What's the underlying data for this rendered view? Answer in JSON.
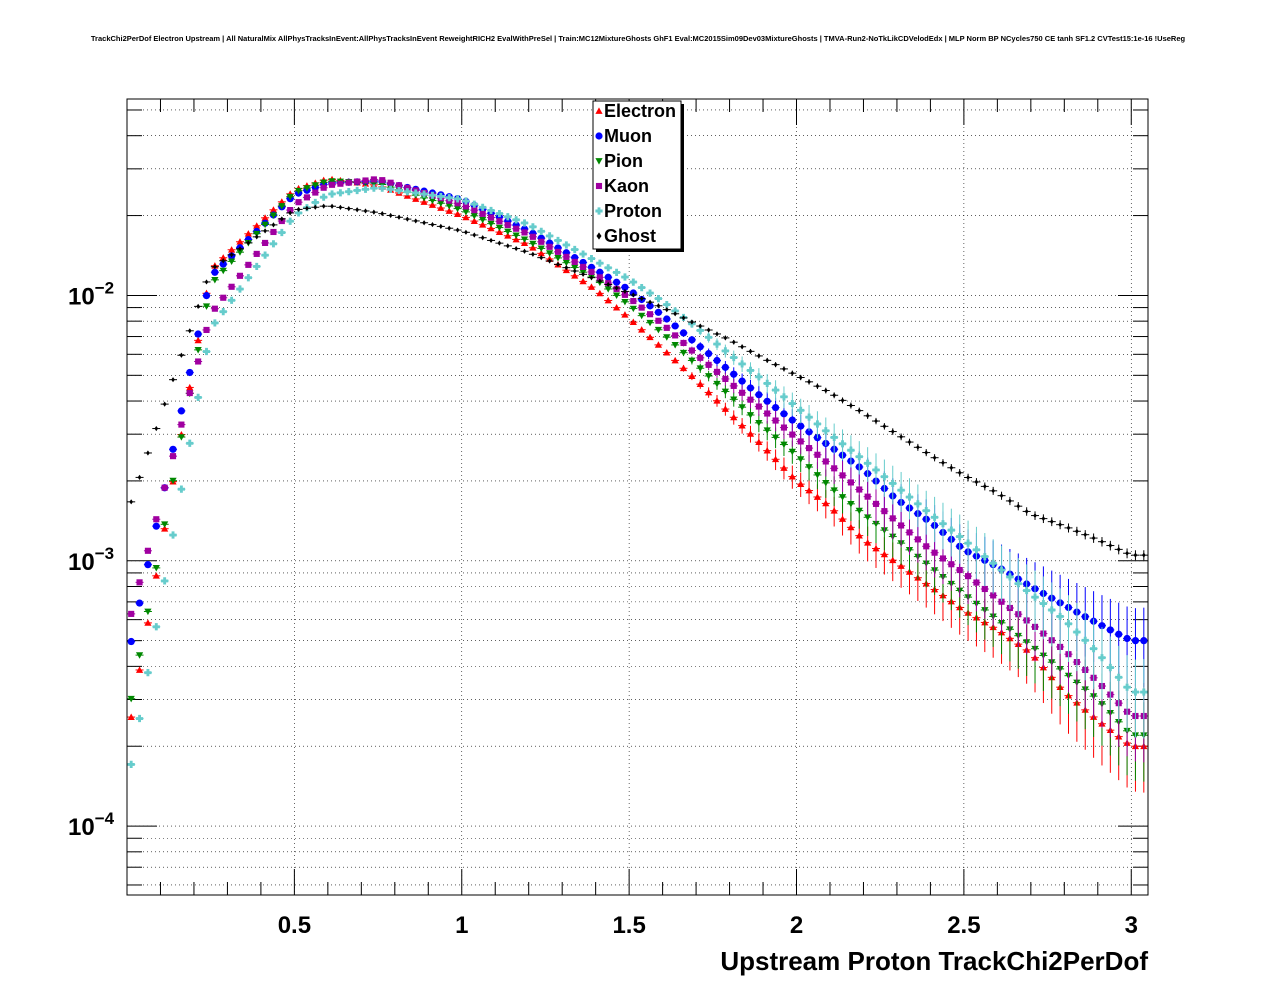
{
  "chart_data": {
    "type": "scatter",
    "title": "TrackChi2PerDof Electron Upstream | All NaturalMix AllPhysTracksInEvent:AllPhysTracksInEvent ReweightRICH2 EvalWithPreSel | Train:MC12MixtureGhosts GhF1 Eval:MC2015Sim09Dev03MixtureGhosts | TMVA-Run2-NoTkLikCDVelodEdx | MLP Norm BP NCycles750 CE tanh SF1.2 CVTest15:1e-16 !UseReg",
    "xlabel": "Upstream Proton TrackChi2PerDof",
    "ylabel": "",
    "xlim": [
      0.0,
      3.05
    ],
    "ylim": [
      5.5e-05,
      0.055
    ],
    "yscale": "log",
    "grid": true,
    "legend_position": "top-center",
    "x_ticks": [
      {
        "value": 0.5,
        "label": "0.5"
      },
      {
        "value": 1,
        "label": "1"
      },
      {
        "value": 1.5,
        "label": "1.5"
      },
      {
        "value": 2,
        "label": "2"
      },
      {
        "value": 2.5,
        "label": "2.5"
      },
      {
        "value": 3,
        "label": "3"
      }
    ],
    "y_ticks": [
      {
        "value": 0.01,
        "base": "10",
        "exp": "−2"
      },
      {
        "value": 0.001,
        "base": "10",
        "exp": "−3"
      },
      {
        "value": 0.0001,
        "base": "10",
        "exp": "−4"
      }
    ],
    "series": [
      {
        "name": "Electron",
        "color": "#ff0000",
        "marker": "triangle-up",
        "points": [
          [
            0.0,
            0.00021
          ],
          [
            0.25,
            0.0125
          ],
          [
            0.5,
            0.025
          ],
          [
            0.6,
            0.0275
          ],
          [
            0.75,
            0.026
          ],
          [
            1.0,
            0.02
          ],
          [
            1.2,
            0.0155
          ],
          [
            1.4,
            0.0105
          ],
          [
            1.5,
            0.0082
          ],
          [
            1.6,
            0.0063
          ],
          [
            1.7,
            0.0048
          ],
          [
            1.8,
            0.0036
          ],
          [
            1.9,
            0.0027
          ],
          [
            2.0,
            0.002
          ],
          [
            2.1,
            0.0016
          ],
          [
            2.2,
            0.0012
          ],
          [
            2.3,
            0.00098
          ],
          [
            2.4,
            0.0008
          ],
          [
            2.5,
            0.00065
          ],
          [
            2.6,
            0.00055
          ],
          [
            2.7,
            0.00045
          ],
          [
            2.8,
            0.00032
          ],
          [
            2.9,
            0.00025
          ],
          [
            3.0,
            0.0002
          ]
        ]
      },
      {
        "name": "Muon",
        "color": "#0000ff",
        "marker": "circle",
        "points": [
          [
            0.0,
            0.00042
          ],
          [
            0.25,
            0.0118
          ],
          [
            0.5,
            0.024
          ],
          [
            0.6,
            0.0265
          ],
          [
            0.75,
            0.027
          ],
          [
            1.0,
            0.023
          ],
          [
            1.2,
            0.0175
          ],
          [
            1.4,
            0.0125
          ],
          [
            1.5,
            0.0105
          ],
          [
            1.6,
            0.0084
          ],
          [
            1.7,
            0.0066
          ],
          [
            1.8,
            0.0052
          ],
          [
            1.9,
            0.0041
          ],
          [
            2.0,
            0.0033
          ],
          [
            2.1,
            0.0027
          ],
          [
            2.2,
            0.0022
          ],
          [
            2.3,
            0.0017
          ],
          [
            2.4,
            0.0014
          ],
          [
            2.5,
            0.0011
          ],
          [
            2.6,
            0.00095
          ],
          [
            2.7,
            0.0008
          ],
          [
            2.8,
            0.00068
          ],
          [
            2.9,
            0.00058
          ],
          [
            3.0,
            0.0005
          ]
        ]
      },
      {
        "name": "Pion",
        "color": "#008800",
        "marker": "triangle-down",
        "points": [
          [
            0.0,
            0.00025
          ],
          [
            0.25,
            0.011
          ],
          [
            0.5,
            0.0245
          ],
          [
            0.6,
            0.027
          ],
          [
            0.75,
            0.0265
          ],
          [
            1.0,
            0.021
          ],
          [
            1.2,
            0.016
          ],
          [
            1.4,
            0.0115
          ],
          [
            1.5,
            0.0092
          ],
          [
            1.6,
            0.0072
          ],
          [
            1.7,
            0.0055
          ],
          [
            1.8,
            0.0042
          ],
          [
            1.9,
            0.0032
          ],
          [
            2.0,
            0.0025
          ],
          [
            2.1,
            0.0019
          ],
          [
            2.2,
            0.0015
          ],
          [
            2.3,
            0.0012
          ],
          [
            2.4,
            0.00095
          ],
          [
            2.5,
            0.00075
          ],
          [
            2.6,
            0.0006
          ],
          [
            2.7,
            0.00048
          ],
          [
            2.8,
            0.00038
          ],
          [
            2.9,
            0.0003
          ],
          [
            3.0,
            0.00022
          ]
        ]
      },
      {
        "name": "Kaon",
        "color": "#a000a0",
        "marker": "square",
        "points": [
          [
            0.0,
            0.00055
          ],
          [
            0.25,
            0.0085
          ],
          [
            0.5,
            0.022
          ],
          [
            0.6,
            0.026
          ],
          [
            0.75,
            0.0275
          ],
          [
            1.0,
            0.022
          ],
          [
            1.2,
            0.017
          ],
          [
            1.4,
            0.012
          ],
          [
            1.5,
            0.0098
          ],
          [
            1.6,
            0.0078
          ],
          [
            1.7,
            0.006
          ],
          [
            1.8,
            0.0047
          ],
          [
            1.9,
            0.0037
          ],
          [
            2.0,
            0.0029
          ],
          [
            2.1,
            0.0023
          ],
          [
            2.2,
            0.0018
          ],
          [
            2.3,
            0.0014
          ],
          [
            2.4,
            0.0011
          ],
          [
            2.5,
            0.0009
          ],
          [
            2.6,
            0.00072
          ],
          [
            2.7,
            0.00058
          ],
          [
            2.8,
            0.00046
          ],
          [
            2.9,
            0.00035
          ],
          [
            3.0,
            0.00026
          ]
        ]
      },
      {
        "name": "Proton",
        "color": "#66cccc",
        "marker": "cross",
        "points": [
          [
            0.0,
            0.00014
          ],
          [
            0.25,
            0.0075
          ],
          [
            0.5,
            0.02
          ],
          [
            0.6,
            0.024
          ],
          [
            0.75,
            0.0255
          ],
          [
            1.0,
            0.023
          ],
          [
            1.2,
            0.0185
          ],
          [
            1.4,
            0.0135
          ],
          [
            1.5,
            0.0115
          ],
          [
            1.6,
            0.0095
          ],
          [
            1.7,
            0.0076
          ],
          [
            1.8,
            0.006
          ],
          [
            1.9,
            0.0048
          ],
          [
            2.0,
            0.0038
          ],
          [
            2.1,
            0.003
          ],
          [
            2.2,
            0.0024
          ],
          [
            2.3,
            0.0019
          ],
          [
            2.4,
            0.0015
          ],
          [
            2.5,
            0.0012
          ],
          [
            2.6,
            0.00095
          ],
          [
            2.7,
            0.00075
          ],
          [
            2.8,
            0.0006
          ],
          [
            2.9,
            0.00045
          ],
          [
            3.0,
            0.00032
          ]
        ]
      },
      {
        "name": "Ghost",
        "color": "#000000",
        "marker": "diamond",
        "points": [
          [
            0.0,
            0.0015
          ],
          [
            0.25,
            0.0125
          ],
          [
            0.5,
            0.021
          ],
          [
            0.6,
            0.0218
          ],
          [
            0.75,
            0.0205
          ],
          [
            1.0,
            0.0175
          ],
          [
            1.2,
            0.0145
          ],
          [
            1.4,
            0.0115
          ],
          [
            1.5,
            0.0102
          ],
          [
            1.6,
            0.009
          ],
          [
            1.7,
            0.0078
          ],
          [
            1.8,
            0.0068
          ],
          [
            1.9,
            0.0058
          ],
          [
            2.0,
            0.005
          ],
          [
            2.1,
            0.0043
          ],
          [
            2.2,
            0.0036
          ],
          [
            2.3,
            0.003
          ],
          [
            2.4,
            0.0025
          ],
          [
            2.5,
            0.0021
          ],
          [
            2.6,
            0.0018
          ],
          [
            2.7,
            0.0015
          ],
          [
            2.8,
            0.00135
          ],
          [
            2.9,
            0.0012
          ],
          [
            3.0,
            0.00105
          ]
        ]
      }
    ]
  }
}
